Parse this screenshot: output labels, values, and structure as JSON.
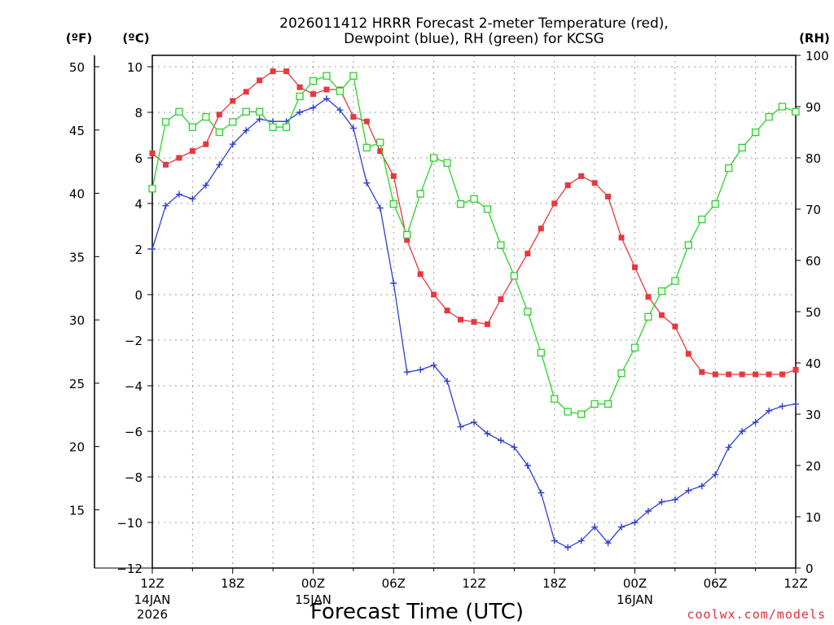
{
  "chart_data": {
    "type": "line",
    "title_line1": "2026011412 HRRR Forecast 2-meter Temperature (red),",
    "title_line2": "Dewpoint (blue), RH (green) for KCSG",
    "xlabel": "Forecast Time (UTC)",
    "unit_f": "(ºF)",
    "unit_c": "(ºC)",
    "unit_rh": "(RH)",
    "credit": "coolwx.com/models",
    "x_hours": [
      0,
      1,
      2,
      3,
      4,
      5,
      6,
      7,
      8,
      9,
      10,
      11,
      12,
      13,
      14,
      15,
      16,
      17,
      18,
      19,
      20,
      21,
      22,
      23,
      24,
      25,
      26,
      27,
      28,
      29,
      30,
      31,
      32,
      33,
      34,
      35,
      36,
      37,
      38,
      39,
      40,
      41,
      42,
      43,
      44,
      45,
      46,
      47,
      48
    ],
    "xlim": [
      0,
      48
    ],
    "x_ticks": [
      {
        "h": 0,
        "label": "12Z",
        "sub1": "14JAN",
        "sub2": "2026"
      },
      {
        "h": 6,
        "label": "18Z",
        "sub1": "",
        "sub2": ""
      },
      {
        "h": 12,
        "label": "00Z",
        "sub1": "15JAN",
        "sub2": ""
      },
      {
        "h": 18,
        "label": "06Z",
        "sub1": "",
        "sub2": ""
      },
      {
        "h": 24,
        "label": "12Z",
        "sub1": "",
        "sub2": ""
      },
      {
        "h": 30,
        "label": "18Z",
        "sub1": "",
        "sub2": ""
      },
      {
        "h": 36,
        "label": "00Z",
        "sub1": "16JAN",
        "sub2": ""
      },
      {
        "h": 42,
        "label": "06Z",
        "sub1": "",
        "sub2": ""
      },
      {
        "h": 48,
        "label": "12Z",
        "sub1": "",
        "sub2": ""
      }
    ],
    "ylim_c": [
      -12,
      10.5
    ],
    "y_ticks_c": [
      10,
      8,
      6,
      4,
      2,
      0,
      -2,
      -4,
      -6,
      -8,
      -10,
      -12
    ],
    "y_tick_labels_c": [
      "10",
      "8",
      "6",
      "4",
      "2",
      "0",
      "−2",
      "−4",
      "−6",
      "−8",
      "−10",
      "−12"
    ],
    "y_ticks_f": [
      50,
      45,
      40,
      35,
      30,
      25,
      20,
      15
    ],
    "y_tick_labels_f": [
      "50",
      "45",
      "40",
      "35",
      "30",
      "25",
      "20",
      "15"
    ],
    "ylim_rh": [
      0,
      100
    ],
    "y_ticks_rh": [
      100,
      90,
      80,
      70,
      60,
      50,
      40,
      30,
      20,
      10,
      0
    ],
    "y_tick_labels_rh": [
      "100",
      "90",
      "80",
      "70",
      "60",
      "50",
      "40",
      "30",
      "20",
      "10",
      "0"
    ],
    "grid": true,
    "series": [
      {
        "key": "temperature",
        "axis": "c",
        "color": "#e8383c",
        "marker": "filled-square",
        "values": [
          6.2,
          5.7,
          6.0,
          6.3,
          6.6,
          7.9,
          8.5,
          8.9,
          9.4,
          9.8,
          9.8,
          9.1,
          8.8,
          9.0,
          9.0,
          7.8,
          7.6,
          6.3,
          5.2,
          2.4,
          0.9,
          0.0,
          -0.7,
          -1.1,
          -1.2,
          -1.3,
          -0.2,
          0.8,
          1.8,
          2.9,
          4.0,
          4.8,
          5.2,
          4.9,
          4.3,
          2.5,
          1.2,
          -0.1,
          -0.9,
          -1.4,
          -2.6,
          -3.4,
          -3.5,
          -3.5,
          -3.5,
          -3.5,
          -3.5,
          -3.5,
          -3.3
        ]
      },
      {
        "key": "dewpoint",
        "axis": "c",
        "color": "#2c3fd6",
        "marker": "plus",
        "values": [
          2.0,
          3.9,
          4.4,
          4.2,
          4.8,
          5.7,
          6.6,
          7.2,
          7.7,
          7.6,
          7.6,
          8.0,
          8.2,
          8.6,
          8.1,
          7.3,
          4.9,
          3.8,
          0.5,
          -3.4,
          -3.3,
          -3.1,
          -3.8,
          -5.8,
          -5.6,
          -6.1,
          -6.4,
          -6.7,
          -7.5,
          -8.7,
          -10.8,
          -11.1,
          -10.8,
          -10.2,
          -10.9,
          -10.2,
          -10.0,
          -9.5,
          -9.1,
          -9.0,
          -8.6,
          -8.4,
          -7.9,
          -6.7,
          -6.0,
          -5.6,
          -5.1,
          -4.9,
          -4.8
        ]
      },
      {
        "key": "rh",
        "axis": "rh",
        "color": "#2dd12d",
        "marker": "open-square",
        "values": [
          74,
          87,
          89,
          86,
          88,
          85,
          87,
          89,
          89,
          86,
          86,
          92,
          95,
          96,
          93,
          96,
          82,
          83,
          71,
          65,
          73,
          80,
          79,
          71,
          72,
          70,
          63,
          57,
          50,
          42,
          33,
          30.5,
          30,
          32,
          32,
          38,
          43,
          49,
          54,
          56,
          63,
          68,
          71,
          78,
          82,
          85,
          88,
          90,
          89
        ]
      }
    ]
  }
}
